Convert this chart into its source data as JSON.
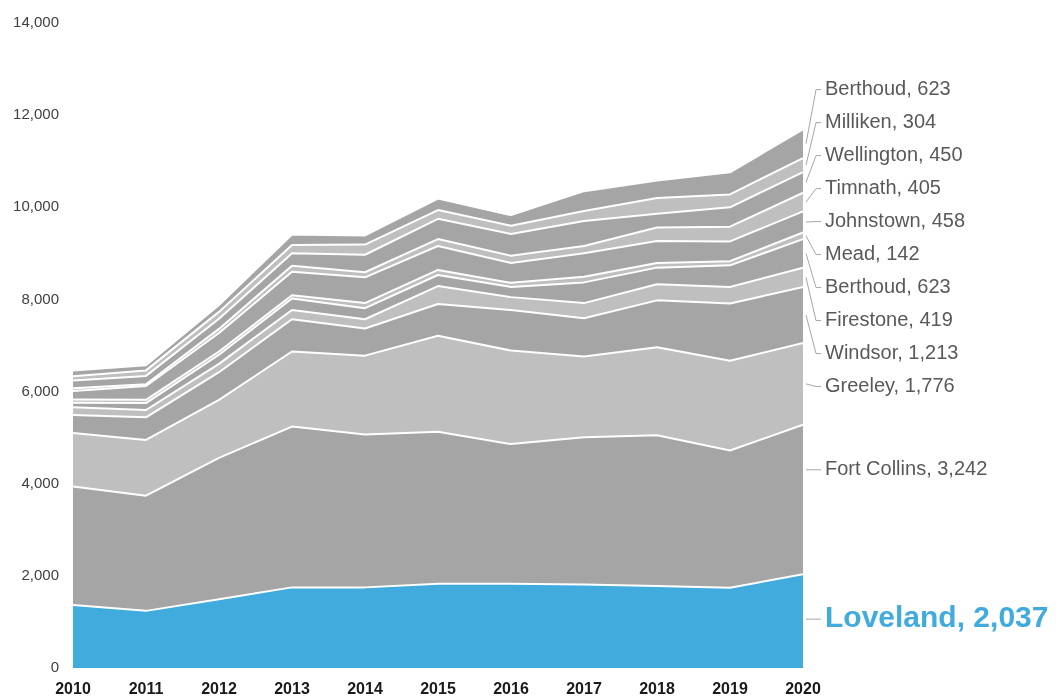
{
  "chart_data": {
    "type": "area",
    "stacked": true,
    "categories": [
      "2010",
      "2011",
      "2012",
      "2013",
      "2014",
      "2015",
      "2016",
      "2017",
      "2018",
      "2019",
      "2020"
    ],
    "ylim": [
      0,
      14000
    ],
    "yticks": [
      0,
      {
        "value": 2000,
        "label": "2,000"
      },
      {
        "value": 4000,
        "label": "4,000"
      },
      {
        "value": 6000,
        "label": "6,000"
      },
      {
        "value": 8000,
        "label": "8,000"
      },
      {
        "value": 10000,
        "label": "10,000"
      },
      {
        "value": 12000,
        "label": "12,000"
      },
      {
        "value": 14000,
        "label": "14,000"
      }
    ],
    "series": [
      {
        "color": "#42abdd",
        "values": [
          1370,
          1240,
          1490,
          1750,
          1750,
          1830,
          1830,
          1810,
          1780,
          1740,
          2037
        ],
        "value_labels": [
          null,
          null,
          null,
          null,
          null,
          null,
          null,
          null,
          null,
          null,
          "Loveland, 2,037"
        ]
      },
      {
        "color": "#a5a5a5",
        "values": [
          2570,
          2500,
          3070,
          3490,
          3320,
          3300,
          3030,
          3200,
          3270,
          2980,
          3242
        ],
        "value_labels": [
          null,
          null,
          null,
          null,
          null,
          null,
          null,
          null,
          null,
          null,
          "Fort Collins, 3,242"
        ]
      },
      {
        "color": "#bfbfbf",
        "values": [
          1160,
          1210,
          1260,
          1630,
          1710,
          2080,
          2030,
          1750,
          1910,
          1950,
          1776
        ],
        "value_labels": [
          null,
          null,
          null,
          null,
          null,
          null,
          null,
          null,
          null,
          null,
          "Greeley, 1,776"
        ]
      },
      {
        "color": "#a5a5a5",
        "values": [
          390,
          490,
          600,
          700,
          590,
          690,
          880,
          830,
          1020,
          1240,
          1213
        ],
        "value_labels": [
          null,
          null,
          null,
          null,
          null,
          null,
          null,
          null,
          null,
          null,
          "Windsor, 1,213"
        ]
      },
      {
        "color": "#bfbfbf",
        "values": [
          170,
          160,
          180,
          200,
          200,
          390,
          280,
          330,
          350,
          360,
          419
        ],
        "value_labels": [
          null,
          null,
          null,
          null,
          null,
          null,
          null,
          null,
          null,
          null,
          "Firestone, 419"
        ]
      },
      {
        "color": "#a5a5a5",
        "values": [
          100,
          150,
          200,
          250,
          240,
          240,
          220,
          450,
          360,
          470,
          623
        ],
        "value_labels": [
          null,
          null,
          null,
          null,
          null,
          null,
          null,
          null,
          null,
          null,
          "Berthoud, 623"
        ]
      },
      {
        "color": "#bfbfbf",
        "values": [
          70,
          70,
          70,
          70,
          110,
          110,
          90,
          120,
          100,
          90,
          142
        ],
        "value_labels": [
          null,
          null,
          null,
          null,
          null,
          null,
          null,
          null,
          null,
          null,
          "Mead, 142"
        ]
      },
      {
        "color": "#a5a5a5",
        "values": [
          180,
          300,
          400,
          510,
          560,
          520,
          430,
          510,
          480,
          430,
          458
        ],
        "value_labels": [
          null,
          null,
          null,
          null,
          null,
          null,
          null,
          null,
          null,
          null,
          "Johnstown, 458"
        ]
      },
      {
        "color": "#bfbfbf",
        "values": [
          60,
          40,
          90,
          130,
          110,
          150,
          160,
          160,
          290,
          320,
          405
        ],
        "value_labels": [
          null,
          null,
          null,
          null,
          null,
          null,
          null,
          null,
          null,
          null,
          "Timnath, 405"
        ]
      },
      {
        "color": "#a5a5a5",
        "values": [
          170,
          180,
          220,
          270,
          380,
          440,
          470,
          540,
          300,
          420,
          450
        ],
        "value_labels": [
          null,
          null,
          null,
          null,
          null,
          null,
          null,
          null,
          null,
          null,
          "Wellington, 450"
        ]
      },
      {
        "color": "#bfbfbf",
        "values": [
          90,
          120,
          150,
          180,
          220,
          190,
          180,
          220,
          340,
          280,
          304
        ],
        "value_labels": [
          null,
          null,
          null,
          null,
          null,
          null,
          null,
          null,
          null,
          null,
          "Milliken, 304"
        ]
      },
      {
        "color": "#a5a5a5",
        "values": [
          130,
          110,
          150,
          230,
          200,
          250,
          230,
          430,
          380,
          480,
          623
        ],
        "value_labels": [
          null,
          null,
          null,
          null,
          null,
          null,
          null,
          null,
          null,
          null,
          "Berthoud, 623"
        ]
      }
    ]
  }
}
